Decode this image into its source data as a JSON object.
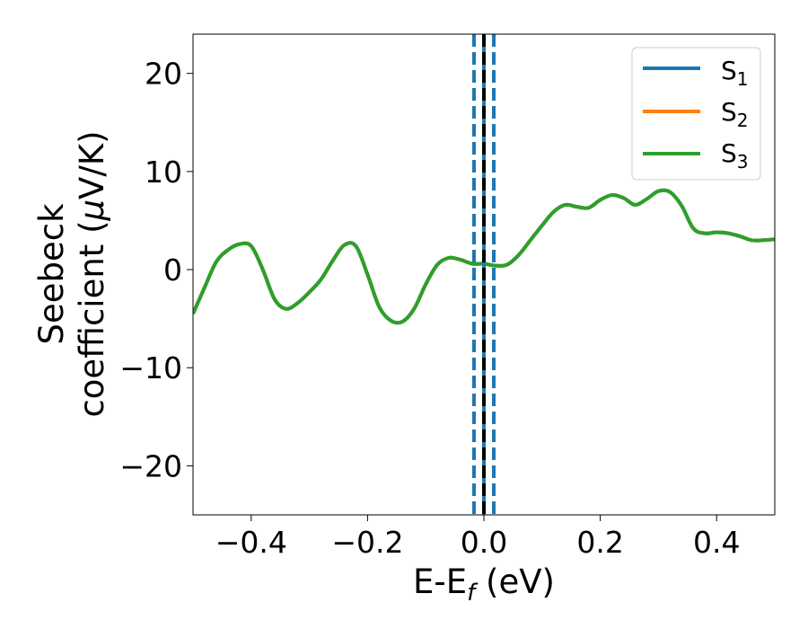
{
  "chart_data": {
    "type": "line",
    "title": "",
    "xlabel": "E-E",
    "xlabel_sub": "f",
    "xlabel_suffix": " (eV)",
    "ylabel_line1": "Seebeck",
    "ylabel_line2": "coefficient  (",
    "ylabel_mu": "μ",
    "ylabel_tail": "V/K)",
    "xlim": [
      -0.5,
      0.5
    ],
    "ylim": [
      -25,
      24
    ],
    "xticks": [
      -0.4,
      -0.2,
      0.0,
      0.2,
      0.4
    ],
    "xtick_labels": [
      "−0.4",
      "−0.2",
      "0.0",
      "0.2",
      "0.4"
    ],
    "yticks": [
      -20,
      -10,
      0,
      10,
      20
    ],
    "ytick_labels": [
      "−20",
      "−10",
      "0",
      "10",
      "20"
    ],
    "grid": false,
    "legend_position": "top-right",
    "series": [
      {
        "name": "S",
        "subscript": "1",
        "color": "#1f77b4",
        "values_same_as": "S3"
      },
      {
        "name": "S",
        "subscript": "2",
        "color": "#ff7f0e",
        "values_same_as": "S3"
      },
      {
        "name": "S",
        "subscript": "3",
        "color": "#2ca02c",
        "x": [
          -0.5,
          -0.48,
          -0.46,
          -0.44,
          -0.42,
          -0.4,
          -0.38,
          -0.36,
          -0.34,
          -0.32,
          -0.3,
          -0.28,
          -0.26,
          -0.24,
          -0.22,
          -0.2,
          -0.18,
          -0.16,
          -0.14,
          -0.12,
          -0.1,
          -0.08,
          -0.06,
          -0.04,
          -0.02,
          0.0,
          0.02,
          0.04,
          0.06,
          0.08,
          0.1,
          0.12,
          0.14,
          0.16,
          0.18,
          0.2,
          0.22,
          0.24,
          0.26,
          0.28,
          0.3,
          0.32,
          0.34,
          0.36,
          0.38,
          0.4,
          0.42,
          0.44,
          0.46,
          0.48,
          0.5
        ],
        "y": [
          -4.5,
          -1.8,
          0.8,
          2.0,
          2.6,
          2.4,
          0.0,
          -3.0,
          -4.0,
          -3.4,
          -2.3,
          -1.0,
          0.9,
          2.5,
          2.4,
          -0.5,
          -3.8,
          -5.2,
          -5.3,
          -4.0,
          -1.5,
          0.5,
          1.2,
          1.0,
          0.6,
          0.6,
          0.4,
          0.5,
          1.5,
          3.0,
          4.5,
          5.9,
          6.6,
          6.4,
          6.3,
          7.1,
          7.6,
          7.3,
          6.6,
          7.2,
          8.0,
          7.9,
          6.5,
          4.2,
          3.7,
          3.8,
          3.7,
          3.4,
          3.0,
          3.0,
          3.1
        ]
      }
    ],
    "vlines": [
      {
        "x": -0.017,
        "color": "#1f77b4",
        "style": "dashed"
      },
      {
        "x": 0.017,
        "color": "#1f77b4",
        "style": "dashed"
      },
      {
        "x": 0.0,
        "color": "#1f77b4",
        "style": "solid"
      },
      {
        "x": 0.0,
        "color": "#000000",
        "style": "dashed"
      }
    ]
  }
}
